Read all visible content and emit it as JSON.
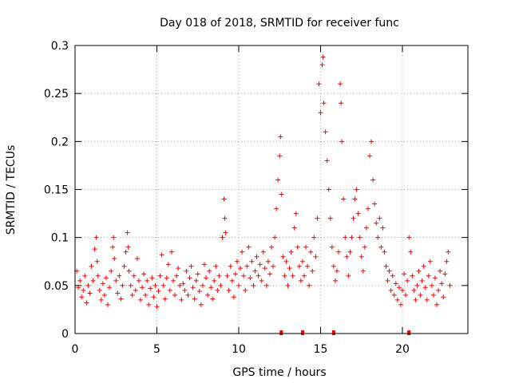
{
  "chart_data": {
    "type": "scatter",
    "title": "Day 018 of 2018, SRMTID for receiver func",
    "xlabel": "GPS time / hours",
    "ylabel": "SRMTID / TECUs",
    "xlim": [
      0,
      24
    ],
    "ylim": [
      0,
      0.3
    ],
    "x_ticks": [
      0,
      5,
      10,
      15,
      20
    ],
    "x_tick_labels": [
      "0",
      "5",
      "10",
      "15",
      "20"
    ],
    "y_ticks": [
      0,
      0.05,
      0.1,
      0.15,
      0.2,
      0.25,
      0.3
    ],
    "y_tick_labels": [
      "0",
      "0.05",
      "0.1",
      "0.15",
      "0.2",
      "0.25",
      "0.3"
    ],
    "grid": true,
    "marker": "plus",
    "color": "#ff0000",
    "points": [
      [
        0.1,
        0.065
      ],
      [
        0.2,
        0.048
      ],
      [
        0.3,
        0.055
      ],
      [
        0.4,
        0.038
      ],
      [
        0.5,
        0.045
      ],
      [
        0.6,
        0.06
      ],
      [
        0.7,
        0.032
      ],
      [
        0.8,
        0.05
      ],
      [
        0.9,
        0.042
      ],
      [
        1.0,
        0.07
      ],
      [
        1.1,
        0.055
      ],
      [
        1.2,
        0.088
      ],
      [
        1.3,
        0.1
      ],
      [
        1.35,
        0.075
      ],
      [
        1.4,
        0.06
      ],
      [
        1.5,
        0.045
      ],
      [
        1.6,
        0.035
      ],
      [
        1.7,
        0.052
      ],
      [
        1.8,
        0.04
      ],
      [
        1.9,
        0.058
      ],
      [
        2.0,
        0.03
      ],
      [
        2.1,
        0.048
      ],
      [
        2.2,
        0.065
      ],
      [
        2.3,
        0.09
      ],
      [
        2.35,
        0.1
      ],
      [
        2.4,
        0.078
      ],
      [
        2.5,
        0.055
      ],
      [
        2.6,
        0.042
      ],
      [
        2.7,
        0.06
      ],
      [
        2.8,
        0.036
      ],
      [
        2.9,
        0.05
      ],
      [
        3.0,
        0.07
      ],
      [
        3.1,
        0.085
      ],
      [
        3.2,
        0.105
      ],
      [
        3.25,
        0.09
      ],
      [
        3.3,
        0.065
      ],
      [
        3.4,
        0.05
      ],
      [
        3.5,
        0.04
      ],
      [
        3.6,
        0.06
      ],
      [
        3.7,
        0.045
      ],
      [
        3.8,
        0.078
      ],
      [
        3.9,
        0.055
      ],
      [
        4.0,
        0.035
      ],
      [
        4.1,
        0.048
      ],
      [
        4.2,
        0.062
      ],
      [
        4.3,
        0.04
      ],
      [
        4.4,
        0.055
      ],
      [
        4.5,
        0.03
      ],
      [
        4.6,
        0.047
      ],
      [
        4.7,
        0.058
      ],
      [
        4.8,
        0.038
      ],
      [
        4.9,
        0.05
      ],
      [
        5.0,
        0.028
      ],
      [
        5.1,
        0.044
      ],
      [
        5.2,
        0.06
      ],
      [
        5.3,
        0.082
      ],
      [
        5.4,
        0.05
      ],
      [
        5.5,
        0.036
      ],
      [
        5.6,
        0.058
      ],
      [
        5.7,
        0.072
      ],
      [
        5.8,
        0.045
      ],
      [
        5.9,
        0.085
      ],
      [
        6.0,
        0.055
      ],
      [
        6.1,
        0.04
      ],
      [
        6.2,
        0.06
      ],
      [
        6.3,
        0.068
      ],
      [
        6.4,
        0.05
      ],
      [
        6.5,
        0.035
      ],
      [
        6.6,
        0.052
      ],
      [
        6.7,
        0.045
      ],
      [
        6.8,
        0.065
      ],
      [
        6.9,
        0.04
      ],
      [
        7.0,
        0.058
      ],
      [
        7.1,
        0.07
      ],
      [
        7.2,
        0.048
      ],
      [
        7.3,
        0.036
      ],
      [
        7.4,
        0.055
      ],
      [
        7.5,
        0.062
      ],
      [
        7.6,
        0.044
      ],
      [
        7.7,
        0.03
      ],
      [
        7.8,
        0.05
      ],
      [
        7.9,
        0.072
      ],
      [
        8.0,
        0.058
      ],
      [
        8.1,
        0.04
      ],
      [
        8.2,
        0.065
      ],
      [
        8.3,
        0.048
      ],
      [
        8.4,
        0.036
      ],
      [
        8.5,
        0.055
      ],
      [
        8.6,
        0.07
      ],
      [
        8.7,
        0.045
      ],
      [
        8.8,
        0.06
      ],
      [
        8.9,
        0.05
      ],
      [
        9.0,
        0.1
      ],
      [
        9.1,
        0.14
      ],
      [
        9.15,
        0.12
      ],
      [
        9.2,
        0.105
      ],
      [
        9.3,
        0.06
      ],
      [
        9.4,
        0.045
      ],
      [
        9.5,
        0.07
      ],
      [
        9.6,
        0.055
      ],
      [
        9.7,
        0.038
      ],
      [
        9.8,
        0.062
      ],
      [
        9.9,
        0.075
      ],
      [
        10.0,
        0.05
      ],
      [
        10.1,
        0.068
      ],
      [
        10.2,
        0.085
      ],
      [
        10.3,
        0.06
      ],
      [
        10.4,
        0.045
      ],
      [
        10.5,
        0.07
      ],
      [
        10.6,
        0.09
      ],
      [
        10.7,
        0.058
      ],
      [
        10.8,
        0.075
      ],
      [
        10.9,
        0.05
      ],
      [
        11.0,
        0.065
      ],
      [
        11.1,
        0.08
      ],
      [
        11.2,
        0.06
      ],
      [
        11.3,
        0.072
      ],
      [
        11.4,
        0.055
      ],
      [
        11.5,
        0.085
      ],
      [
        11.6,
        0.068
      ],
      [
        11.7,
        0.05
      ],
      [
        11.8,
        0.075
      ],
      [
        11.9,
        0.062
      ],
      [
        12.0,
        0.09
      ],
      [
        12.1,
        0.07
      ],
      [
        12.2,
        0.1
      ],
      [
        12.3,
        0.13
      ],
      [
        12.4,
        0.16
      ],
      [
        12.5,
        0.185
      ],
      [
        12.55,
        0.205
      ],
      [
        12.6,
        0.145
      ],
      [
        12.7,
        0.08
      ],
      [
        12.8,
        0.06
      ],
      [
        12.9,
        0.075
      ],
      [
        13.0,
        0.05
      ],
      [
        13.1,
        0.068
      ],
      [
        13.2,
        0.085
      ],
      [
        13.3,
        0.06
      ],
      [
        13.4,
        0.11
      ],
      [
        13.5,
        0.125
      ],
      [
        13.6,
        0.09
      ],
      [
        13.7,
        0.07
      ],
      [
        13.8,
        0.055
      ],
      [
        13.9,
        0.075
      ],
      [
        14.0,
        0.06
      ],
      [
        14.1,
        0.09
      ],
      [
        14.2,
        0.07
      ],
      [
        14.3,
        0.05
      ],
      [
        14.4,
        0.085
      ],
      [
        14.5,
        0.065
      ],
      [
        14.6,
        0.1
      ],
      [
        14.7,
        0.08
      ],
      [
        14.8,
        0.12
      ],
      [
        14.9,
        0.26
      ],
      [
        15.0,
        0.23
      ],
      [
        15.1,
        0.28
      ],
      [
        15.15,
        0.288
      ],
      [
        15.2,
        0.24
      ],
      [
        15.3,
        0.21
      ],
      [
        15.4,
        0.18
      ],
      [
        15.5,
        0.15
      ],
      [
        15.6,
        0.12
      ],
      [
        15.7,
        0.09
      ],
      [
        15.8,
        0.07
      ],
      [
        15.9,
        0.055
      ],
      [
        16.0,
        0.065
      ],
      [
        16.1,
        0.085
      ],
      [
        16.2,
        0.26
      ],
      [
        16.25,
        0.24
      ],
      [
        16.3,
        0.2
      ],
      [
        16.4,
        0.14
      ],
      [
        16.5,
        0.1
      ],
      [
        16.6,
        0.08
      ],
      [
        16.7,
        0.06
      ],
      [
        16.8,
        0.085
      ],
      [
        16.9,
        0.1
      ],
      [
        17.0,
        0.12
      ],
      [
        17.1,
        0.14
      ],
      [
        17.2,
        0.15
      ],
      [
        17.3,
        0.125
      ],
      [
        17.4,
        0.1
      ],
      [
        17.5,
        0.08
      ],
      [
        17.6,
        0.065
      ],
      [
        17.7,
        0.09
      ],
      [
        17.8,
        0.11
      ],
      [
        17.9,
        0.13
      ],
      [
        18.0,
        0.185
      ],
      [
        18.1,
        0.2
      ],
      [
        18.2,
        0.16
      ],
      [
        18.3,
        0.135
      ],
      [
        18.4,
        0.115
      ],
      [
        18.5,
        0.1
      ],
      [
        18.6,
        0.12
      ],
      [
        18.7,
        0.09
      ],
      [
        18.8,
        0.11
      ],
      [
        18.9,
        0.085
      ],
      [
        19.0,
        0.07
      ],
      [
        19.1,
        0.055
      ],
      [
        19.2,
        0.065
      ],
      [
        19.3,
        0.045
      ],
      [
        19.4,
        0.06
      ],
      [
        19.5,
        0.04
      ],
      [
        19.6,
        0.052
      ],
      [
        19.7,
        0.035
      ],
      [
        19.8,
        0.048
      ],
      [
        19.9,
        0.03
      ],
      [
        20.0,
        0.045
      ],
      [
        20.1,
        0.062
      ],
      [
        20.2,
        0.04
      ],
      [
        20.3,
        0.055
      ],
      [
        20.4,
        0.1
      ],
      [
        20.5,
        0.085
      ],
      [
        20.6,
        0.06
      ],
      [
        20.7,
        0.045
      ],
      [
        20.8,
        0.035
      ],
      [
        20.9,
        0.05
      ],
      [
        21.0,
        0.065
      ],
      [
        21.1,
        0.04
      ],
      [
        21.2,
        0.055
      ],
      [
        21.3,
        0.07
      ],
      [
        21.4,
        0.048
      ],
      [
        21.5,
        0.035
      ],
      [
        21.6,
        0.06
      ],
      [
        21.7,
        0.075
      ],
      [
        21.8,
        0.05
      ],
      [
        21.9,
        0.04
      ],
      [
        22.0,
        0.058
      ],
      [
        22.1,
        0.03
      ],
      [
        22.2,
        0.045
      ],
      [
        22.3,
        0.065
      ],
      [
        22.4,
        0.052
      ],
      [
        22.5,
        0.038
      ],
      [
        22.6,
        0.062
      ],
      [
        22.7,
        0.075
      ],
      [
        22.8,
        0.085
      ],
      [
        22.9,
        0.05
      ]
    ],
    "zero_markers": [
      12.6,
      13.9,
      15.8,
      20.4
    ]
  }
}
